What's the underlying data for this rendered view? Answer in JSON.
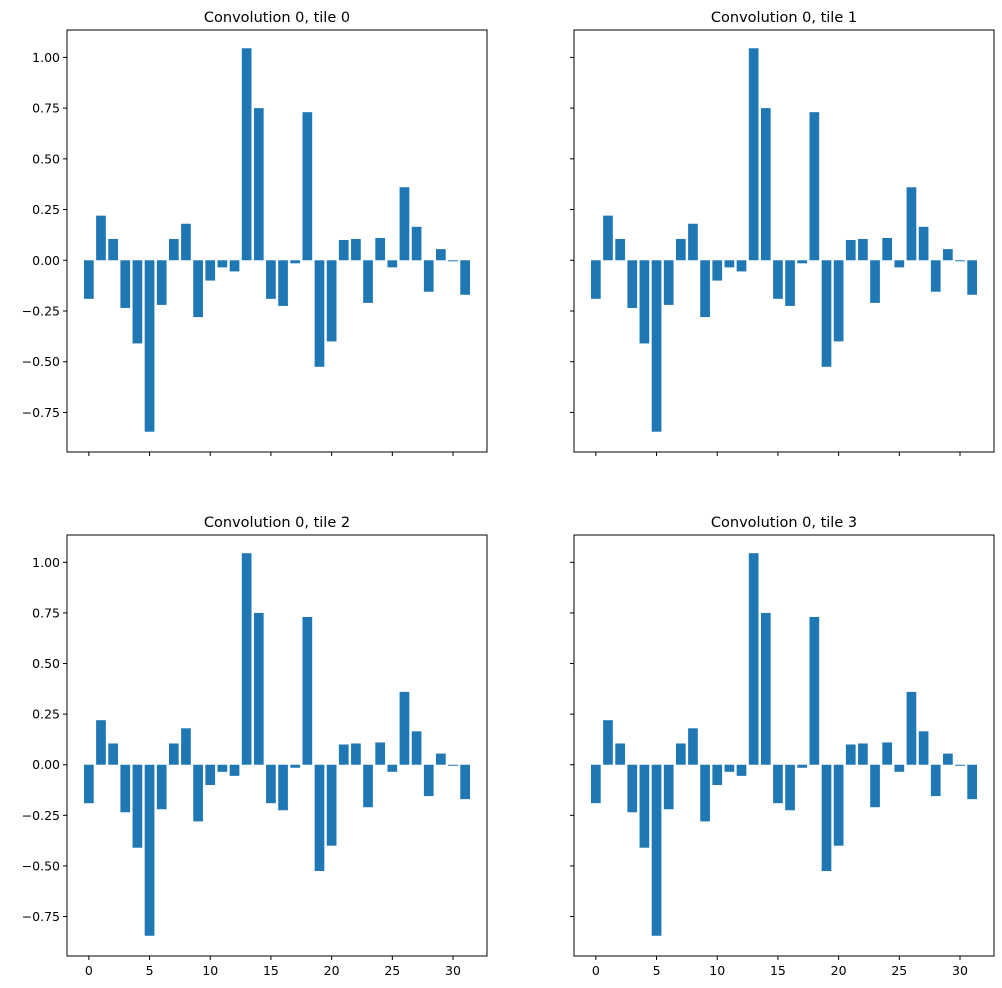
{
  "chart_data": [
    {
      "type": "bar",
      "title": "Convolution 0, tile 0",
      "xlabel": "",
      "ylabel": "",
      "x": [
        0,
        1,
        2,
        3,
        4,
        5,
        6,
        7,
        8,
        9,
        10,
        11,
        12,
        13,
        14,
        15,
        16,
        17,
        18,
        19,
        20,
        21,
        22,
        23,
        24,
        25,
        26,
        27,
        28,
        29,
        30,
        31
      ],
      "values": [
        -0.19,
        0.22,
        0.105,
        -0.235,
        -0.41,
        -0.845,
        -0.22,
        0.105,
        0.18,
        -0.28,
        -0.1,
        -0.035,
        -0.055,
        1.045,
        0.75,
        -0.19,
        -0.225,
        -0.015,
        0.73,
        -0.525,
        -0.4,
        0.1,
        0.105,
        -0.21,
        0.11,
        -0.035,
        0.36,
        0.165,
        -0.155,
        0.055,
        -0.005,
        -0.17
      ],
      "color": "#1f77b4",
      "xlim": [
        -1.8,
        32.8
      ],
      "ylim": [
        -0.945,
        1.135
      ],
      "xticks": [
        "0",
        "5",
        "10",
        "15",
        "20",
        "25",
        "30"
      ],
      "yticks": [
        "−0.75",
        "−0.50",
        "−0.25",
        "0.00",
        "0.25",
        "0.50",
        "0.75",
        "1.00"
      ],
      "show_xticklabels": false,
      "show_yticklabels": true
    },
    {
      "type": "bar",
      "title": "Convolution 0, tile 1",
      "xlabel": "",
      "ylabel": "",
      "x": [
        0,
        1,
        2,
        3,
        4,
        5,
        6,
        7,
        8,
        9,
        10,
        11,
        12,
        13,
        14,
        15,
        16,
        17,
        18,
        19,
        20,
        21,
        22,
        23,
        24,
        25,
        26,
        27,
        28,
        29,
        30,
        31
      ],
      "values": [
        -0.19,
        0.22,
        0.105,
        -0.235,
        -0.41,
        -0.845,
        -0.22,
        0.105,
        0.18,
        -0.28,
        -0.1,
        -0.035,
        -0.055,
        1.045,
        0.75,
        -0.19,
        -0.225,
        -0.015,
        0.73,
        -0.525,
        -0.4,
        0.1,
        0.105,
        -0.21,
        0.11,
        -0.035,
        0.36,
        0.165,
        -0.155,
        0.055,
        -0.005,
        -0.17
      ],
      "color": "#1f77b4",
      "xlim": [
        -1.8,
        32.8
      ],
      "ylim": [
        -0.945,
        1.135
      ],
      "xticks": [
        "0",
        "5",
        "10",
        "15",
        "20",
        "25",
        "30"
      ],
      "yticks": [
        "−0.75",
        "−0.50",
        "−0.25",
        "0.00",
        "0.25",
        "0.50",
        "0.75",
        "1.00"
      ],
      "show_xticklabels": false,
      "show_yticklabels": false
    },
    {
      "type": "bar",
      "title": "Convolution 0, tile 2",
      "xlabel": "",
      "ylabel": "",
      "x": [
        0,
        1,
        2,
        3,
        4,
        5,
        6,
        7,
        8,
        9,
        10,
        11,
        12,
        13,
        14,
        15,
        16,
        17,
        18,
        19,
        20,
        21,
        22,
        23,
        24,
        25,
        26,
        27,
        28,
        29,
        30,
        31
      ],
      "values": [
        -0.19,
        0.22,
        0.105,
        -0.235,
        -0.41,
        -0.845,
        -0.22,
        0.105,
        0.18,
        -0.28,
        -0.1,
        -0.035,
        -0.055,
        1.045,
        0.75,
        -0.19,
        -0.225,
        -0.015,
        0.73,
        -0.525,
        -0.4,
        0.1,
        0.105,
        -0.21,
        0.11,
        -0.035,
        0.36,
        0.165,
        -0.155,
        0.055,
        -0.005,
        -0.17
      ],
      "color": "#1f77b4",
      "xlim": [
        -1.8,
        32.8
      ],
      "ylim": [
        -0.945,
        1.135
      ],
      "xticks": [
        "0",
        "5",
        "10",
        "15",
        "20",
        "25",
        "30"
      ],
      "yticks": [
        "−0.75",
        "−0.50",
        "−0.25",
        "0.00",
        "0.25",
        "0.50",
        "0.75",
        "1.00"
      ],
      "show_xticklabels": true,
      "show_yticklabels": true
    },
    {
      "type": "bar",
      "title": "Convolution 0, tile 3",
      "xlabel": "",
      "ylabel": "",
      "x": [
        0,
        1,
        2,
        3,
        4,
        5,
        6,
        7,
        8,
        9,
        10,
        11,
        12,
        13,
        14,
        15,
        16,
        17,
        18,
        19,
        20,
        21,
        22,
        23,
        24,
        25,
        26,
        27,
        28,
        29,
        30,
        31
      ],
      "values": [
        -0.19,
        0.22,
        0.105,
        -0.235,
        -0.41,
        -0.845,
        -0.22,
        0.105,
        0.18,
        -0.28,
        -0.1,
        -0.035,
        -0.055,
        1.045,
        0.75,
        -0.19,
        -0.225,
        -0.015,
        0.73,
        -0.525,
        -0.4,
        0.1,
        0.105,
        -0.21,
        0.11,
        -0.035,
        0.36,
        0.165,
        -0.155,
        0.055,
        -0.005,
        -0.17
      ],
      "color": "#1f77b4",
      "xlim": [
        -1.8,
        32.8
      ],
      "ylim": [
        -0.945,
        1.135
      ],
      "xticks": [
        "0",
        "5",
        "10",
        "15",
        "20",
        "25",
        "30"
      ],
      "yticks": [
        "−0.75",
        "−0.50",
        "−0.25",
        "0.00",
        "0.25",
        "0.50",
        "0.75",
        "1.00"
      ],
      "show_xticklabels": true,
      "show_yticklabels": false
    }
  ]
}
